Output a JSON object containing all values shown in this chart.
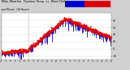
{
  "title_line1": "Milw. Weather  Outdoor Temp  vs  Wind Chill",
  "title_line2": "per Minute  (24 Hours)",
  "bg_color": "#d0d0d0",
  "plot_bg_color": "#ffffff",
  "temp_color": "#dd0000",
  "windchill_color": "#0000cc",
  "colorbar_temp_color": "#dd0000",
  "colorbar_wc_color": "#0000cc",
  "ylim_min": -15,
  "ylim_max": 50,
  "num_points": 1440,
  "seed": 42,
  "yticks": [
    -10,
    0,
    10,
    20,
    30,
    40
  ],
  "ytick_labels": [
    "-10",
    "0",
    "10",
    "20",
    "30",
    "40"
  ]
}
